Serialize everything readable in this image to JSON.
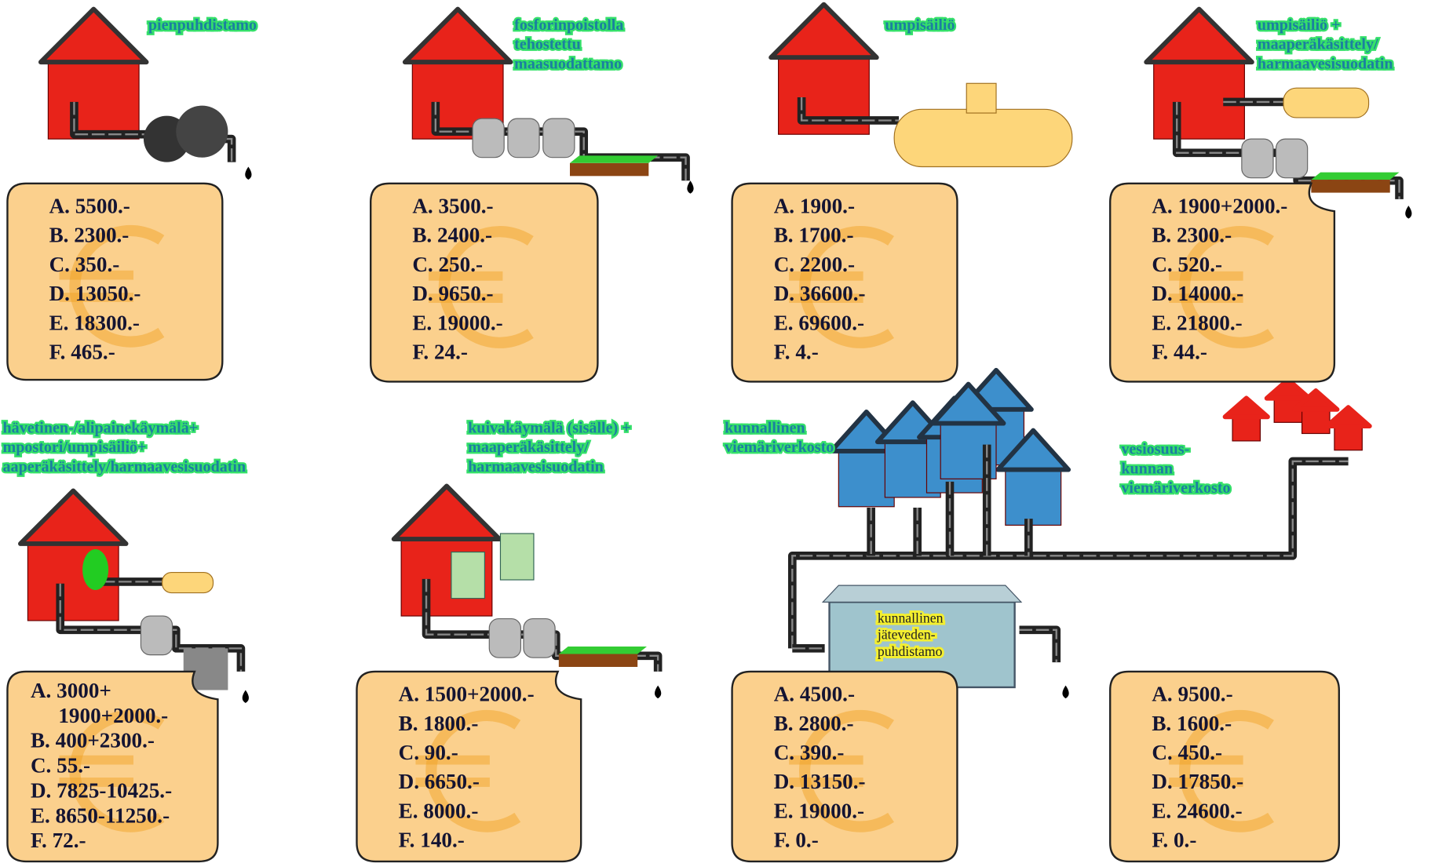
{
  "panels": [
    {
      "label": [
        "pienpuhdistamo"
      ],
      "costs": [
        "A. 5500.-",
        "B. 2300.-",
        "C. 350.-",
        "D. 13050.-",
        "E. 18300.-",
        "F.  465.-"
      ]
    },
    {
      "label": [
        "fosforinpoistolla",
        "tehostettu",
        "maasuodattamo"
      ],
      "costs": [
        "A. 3500.-",
        "B. 2400.-",
        "C. 250.-",
        "D. 9650.-",
        "E. 19000.-",
        "F.  24.-"
      ]
    },
    {
      "label": [
        "umpisäiliö"
      ],
      "costs": [
        "A. 1900.-",
        "B. 1700.-",
        "C. 2200.-",
        "D. 36600.-",
        "E. 69600.-",
        "F.  4.-"
      ]
    },
    {
      "label": [
        "umpisäiliö +",
        "maaperäkäsittely/",
        "harmaavesisuodatin"
      ],
      "costs": [
        "A. 1900+2000.-",
        "B. 2300.-",
        "C. 520.-",
        "D. 14000.-",
        "E. 21800.-",
        "F.  44.-"
      ]
    },
    {
      "label": [
        "hävetinen-/alipainekäymälä+",
        "mpostori/umpisäiliö+",
        "aaperäkäsittely/harmaavesisuodatin"
      ],
      "costs": [
        "A. 3000+",
        "1900+2000.-",
        "B. 400+2300.-",
        "C. 55.-",
        "D. 7825-10425.-",
        "E. 8650-11250.-",
        "F.  72.-"
      ]
    },
    {
      "label": [
        "kuivakäymälä (sisälle) +",
        "maaperäkäsittely/",
        "harmaavesisuodatin"
      ],
      "costs": [
        "A. 1500+2000.-",
        "B. 1800.-",
        "C. 90.-",
        "D. 6650.-",
        "E. 8000.-",
        "F.  140.-"
      ]
    },
    {
      "label": [
        "kunnallinen",
        "viemäriverkosto"
      ],
      "costs": [
        "A. 4500.-",
        "B. 2800.-",
        "C. 390.-",
        "D. 13150.-",
        "E. 19000.-",
        "F.  0.-"
      ]
    },
    {
      "label": [
        "vesiosuus-",
        "kunnan",
        "viemäriverkosto"
      ],
      "costs": [
        "A. 9500.-",
        "B. 1600.-",
        "C. 450.-",
        "D. 17850.-",
        "E. 24600.-",
        "F.  0.-"
      ]
    }
  ],
  "plant_label": [
    "kunnallinen",
    "jäteveden-",
    "puhdistamo"
  ]
}
